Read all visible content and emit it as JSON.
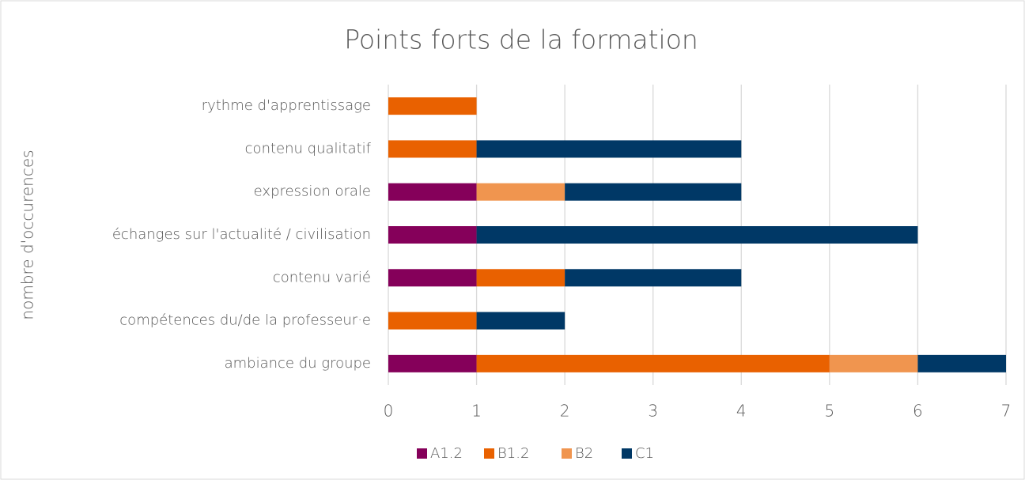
{
  "chart_data": {
    "type": "bar",
    "orientation": "horizontal",
    "stacked": true,
    "title": "Points forts de la formation",
    "y_label": "nombre d'occurences",
    "categories": [
      "rythme d'apprentissage",
      "contenu qualitatif",
      "expression orale",
      "échanges sur l'actualité / civilisation",
      "contenu varié",
      "compétences du/de la professeur·e",
      "ambiance du groupe"
    ],
    "series": [
      {
        "name": "A1.2",
        "color": "#85005a",
        "values": [
          0,
          0,
          1,
          1,
          1,
          0,
          1
        ]
      },
      {
        "name": "B1.2",
        "color": "#e96100",
        "values": [
          1,
          1,
          0,
          0,
          1,
          1,
          4
        ]
      },
      {
        "name": "B2",
        "color": "#f0954f",
        "values": [
          0,
          0,
          1,
          0,
          0,
          0,
          1
        ]
      },
      {
        "name": "C1",
        "color": "#003866",
        "values": [
          0,
          3,
          2,
          5,
          2,
          1,
          1
        ]
      }
    ],
    "xlim": [
      0,
      7
    ],
    "xticks": [
      0,
      1,
      2,
      3,
      4,
      5,
      6,
      7
    ],
    "grid": true,
    "legend": "bottom"
  }
}
